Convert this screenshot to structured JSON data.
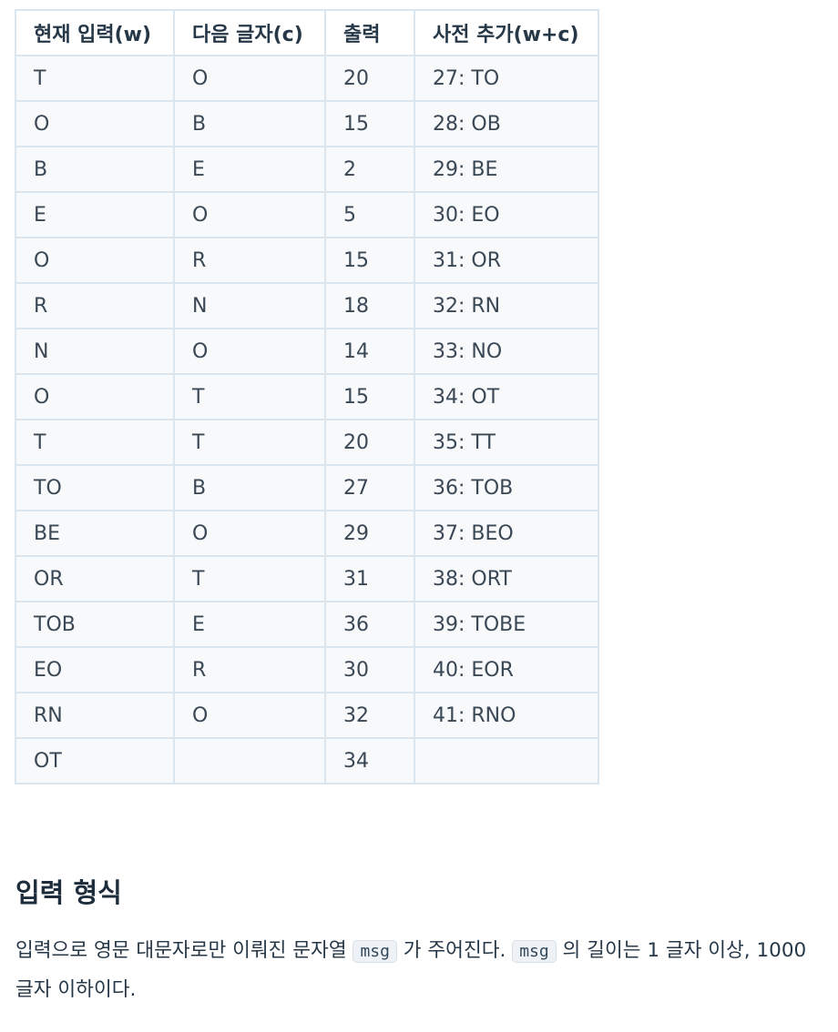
{
  "table": {
    "headers": [
      "현재 입력(w)",
      "다음 글자(c)",
      "출력",
      "사전 추가(w+c)"
    ],
    "rows": [
      [
        "T",
        "O",
        "20",
        "27: TO"
      ],
      [
        "O",
        "B",
        "15",
        "28: OB"
      ],
      [
        "B",
        "E",
        "2",
        "29: BE"
      ],
      [
        "E",
        "O",
        "5",
        "30: EO"
      ],
      [
        "O",
        "R",
        "15",
        "31: OR"
      ],
      [
        "R",
        "N",
        "18",
        "32: RN"
      ],
      [
        "N",
        "O",
        "14",
        "33: NO"
      ],
      [
        "O",
        "T",
        "15",
        "34: OT"
      ],
      [
        "T",
        "T",
        "20",
        "35: TT"
      ],
      [
        "TO",
        "B",
        "27",
        "36: TOB"
      ],
      [
        "BE",
        "O",
        "29",
        "37: BEO"
      ],
      [
        "OR",
        "T",
        "31",
        "38: ORT"
      ],
      [
        "TOB",
        "E",
        "36",
        "39: TOBE"
      ],
      [
        "EO",
        "R",
        "30",
        "40: EOR"
      ],
      [
        "RN",
        "O",
        "32",
        "41: RNO"
      ],
      [
        "OT",
        "",
        "34",
        ""
      ]
    ]
  },
  "input_section": {
    "heading": "입력 형식",
    "text_1": "입력으로 영문 대문자로만 이뤄진 문자열 ",
    "code_1": "msg",
    "text_2": " 가 주어진다. ",
    "code_2": "msg",
    "text_3": " 의 길이는 1 글자 이상, 1000 글자 이하이다."
  }
}
